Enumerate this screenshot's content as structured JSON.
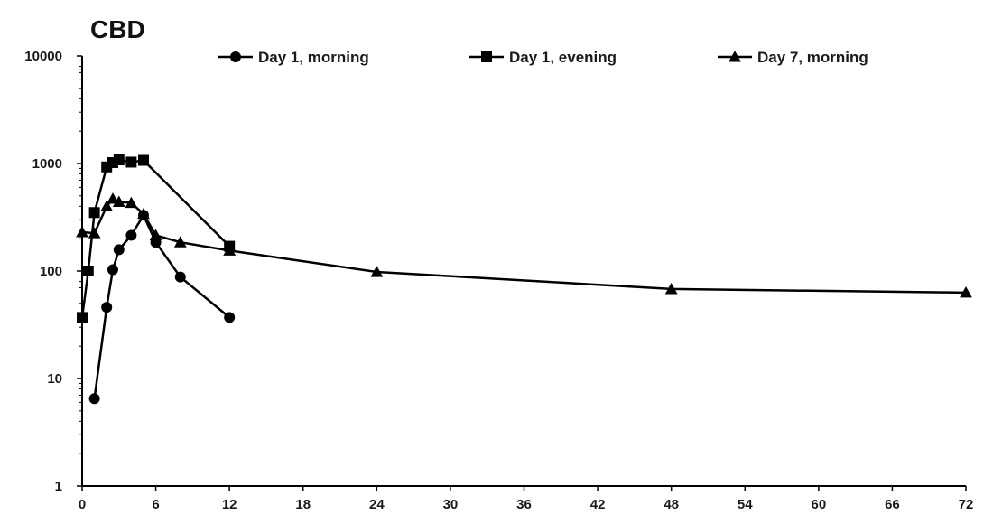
{
  "chart_data": {
    "type": "line",
    "title": "CBD",
    "xlabel": "",
    "ylabel": "",
    "y_scale": "log",
    "xlim": [
      0,
      72
    ],
    "ylim": [
      1,
      10000
    ],
    "x_ticks": [
      "0",
      "6",
      "12",
      "18",
      "24",
      "30",
      "36",
      "42",
      "48",
      "54",
      "60",
      "66",
      "72"
    ],
    "y_ticks": [
      "1",
      "10",
      "100",
      "1000",
      "10000"
    ],
    "grid": false,
    "legend_position": "top",
    "series": [
      {
        "name": "Day 1, morning",
        "marker": "circle",
        "x": [
          1,
          2,
          2.5,
          3,
          4,
          5,
          6,
          8,
          12
        ],
        "y": [
          6.5,
          46,
          103,
          158,
          215,
          330,
          185,
          88,
          37
        ]
      },
      {
        "name": "Day 1, evening",
        "marker": "square",
        "x": [
          0,
          0.5,
          1,
          2,
          2.5,
          3,
          4,
          5,
          12
        ],
        "y": [
          37,
          100,
          350,
          930,
          1020,
          1080,
          1030,
          1070,
          170
        ]
      },
      {
        "name": "Day 7, morning",
        "marker": "triangle",
        "x": [
          0,
          1,
          2,
          2.5,
          3,
          4,
          5,
          6,
          8,
          12,
          24,
          48,
          72
        ],
        "y": [
          230,
          225,
          400,
          470,
          440,
          430,
          340,
          215,
          185,
          155,
          98,
          68,
          63
        ]
      }
    ]
  },
  "colors": {
    "line": "#000000",
    "axis": "#000000",
    "text": "#1a1a1a"
  }
}
